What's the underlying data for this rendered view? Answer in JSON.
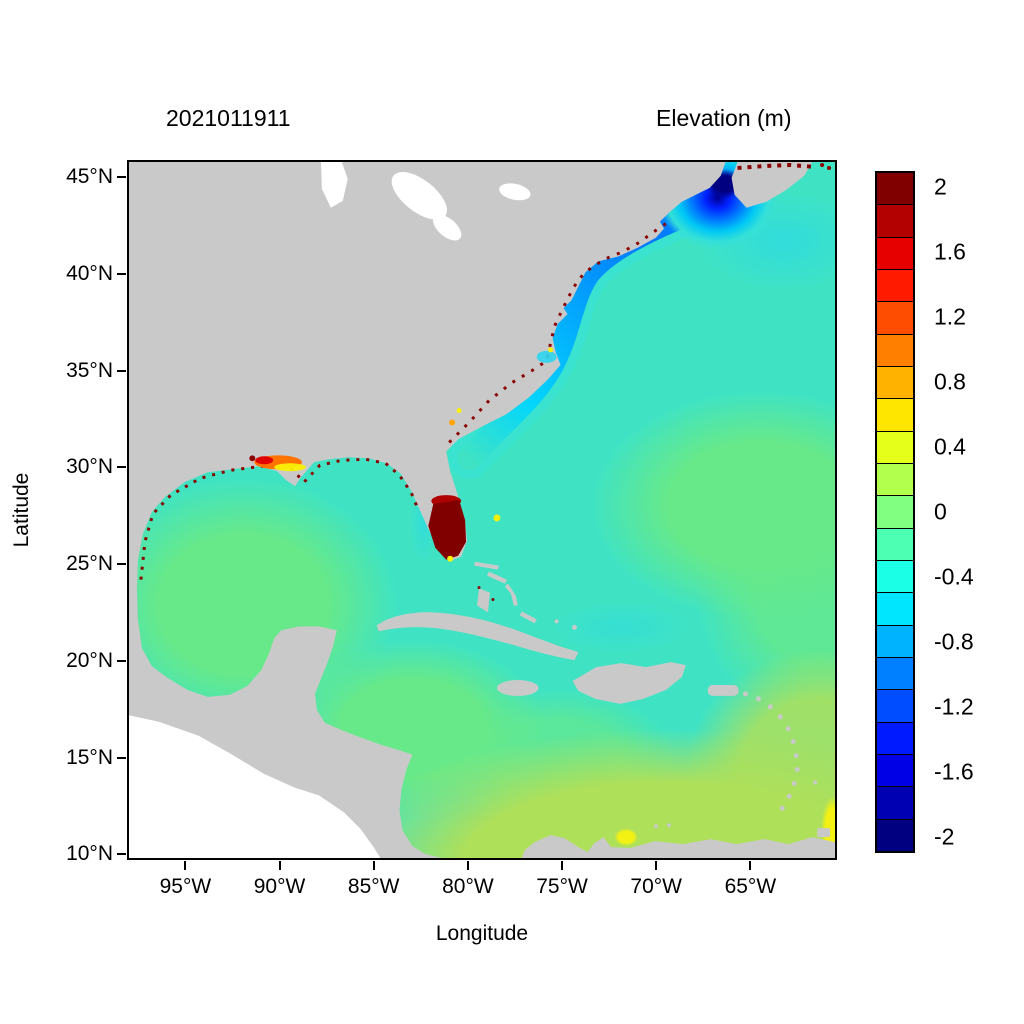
{
  "figure": {
    "timestamp_title": "2021011911",
    "colorbar_title": "Elevation (m)"
  },
  "axes": {
    "x": {
      "label": "Longitude",
      "ticks": [
        {
          "label": "95°W",
          "lon": -95
        },
        {
          "label": "90°W",
          "lon": -90
        },
        {
          "label": "85°W",
          "lon": -85
        },
        {
          "label": "80°W",
          "lon": -80
        },
        {
          "label": "75°W",
          "lon": -75
        },
        {
          "label": "70°W",
          "lon": -70
        },
        {
          "label": "65°W",
          "lon": -65
        }
      ]
    },
    "y": {
      "label": "Latitude",
      "ticks": [
        {
          "label": "45°N",
          "lat": 45
        },
        {
          "label": "40°N",
          "lat": 40
        },
        {
          "label": "35°N",
          "lat": 35
        },
        {
          "label": "30°N",
          "lat": 30
        },
        {
          "label": "25°N",
          "lat": 25
        },
        {
          "label": "20°N",
          "lat": 20
        },
        {
          "label": "15°N",
          "lat": 15
        },
        {
          "label": "10°N",
          "lat": 10
        }
      ]
    }
  },
  "colorbar": {
    "title": "Elevation (m)",
    "range_m": [
      -2.1,
      2.1
    ],
    "step_m": 0.2,
    "labels": [
      {
        "text": "2",
        "value": 2
      },
      {
        "text": "1.6",
        "value": 1.6
      },
      {
        "text": "1.2",
        "value": 1.2
      },
      {
        "text": "0.8",
        "value": 0.8
      },
      {
        "text": "0.4",
        "value": 0.4
      },
      {
        "text": "0",
        "value": 0
      },
      {
        "text": "-0.4",
        "value": -0.4
      },
      {
        "text": "-0.8",
        "value": -0.8
      },
      {
        "text": "-1.2",
        "value": -1.2
      },
      {
        "text": "-1.6",
        "value": -1.6
      },
      {
        "text": "-2",
        "value": -2
      }
    ],
    "colors_top_to_bottom": [
      "#800000",
      "#B30000",
      "#E60000",
      "#FF1A00",
      "#FF4D00",
      "#FF8000",
      "#FFB300",
      "#FFE600",
      "#E6FF1A",
      "#B3FF4D",
      "#80FF80",
      "#4DFFB3",
      "#1AFFE6",
      "#00E6FF",
      "#00B3FF",
      "#0080FF",
      "#004DFF",
      "#001AFF",
      "#0000E6",
      "#0000B3",
      "#000080"
    ]
  },
  "map": {
    "land_color": "#C9C9C9",
    "no_data_color": "#FFFFFF",
    "ocean_base_color": "#3FE3C4"
  },
  "chart_data": {
    "type": "heatmap",
    "title": "2021011911",
    "colorbar_title": "Elevation (m)",
    "xlabel": "Longitude",
    "ylabel": "Latitude",
    "x_ticks_deg_w": [
      95,
      90,
      85,
      80,
      75,
      70,
      65
    ],
    "y_ticks_deg_n": [
      45,
      40,
      35,
      30,
      25,
      20,
      15,
      10
    ],
    "lon_range_deg_w": [
      98.1,
      60.4
    ],
    "lat_range_deg_n": [
      9.7,
      45.9
    ],
    "color_scale_range_m": [
      -2.1,
      2.1
    ],
    "color_scale_step_m": 0.2,
    "legend_position": "right",
    "regions": [
      {
        "name": "open western Atlantic",
        "elevation_m": -0.3
      },
      {
        "name": "mid-Atlantic green patch (~25-32N east of 73W)",
        "elevation_m": -0.1
      },
      {
        "name": "Gulf of Mexico interior",
        "elevation_m": -0.1
      },
      {
        "name": "northwest Caribbean Sea",
        "elevation_m": -0.1
      },
      {
        "name": "southern Caribbean and tropical Atlantic (south of ~18N)",
        "elevation_m": 0.3
      },
      {
        "name": "US southeast continental shelf band",
        "elevation_m": -0.7
      },
      {
        "name": "Mid-Atlantic Bight / New England shelf",
        "elevation_m": -1.0
      },
      {
        "name": "Gulf of Maine",
        "elevation_m": -1.6
      },
      {
        "name": "Bay of Fundy core",
        "elevation_m": -2.1
      },
      {
        "name": "south Florida interior flooded cells",
        "elevation_m": 2.1
      },
      {
        "name": "Louisiana coast cluster",
        "elevation_m": 1.2
      },
      {
        "name": "scattered coastal wetting cells (Gulf coast, US east coast, Nova Scotia)",
        "elevation_m": 2.0
      },
      {
        "name": "Colombia coastal corner spot",
        "elevation_m": 0.5
      },
      {
        "name": "land",
        "elevation_m": null
      },
      {
        "name": "Pacific Ocean and Great Lakes (no data, white)",
        "elevation_m": null
      }
    ]
  }
}
